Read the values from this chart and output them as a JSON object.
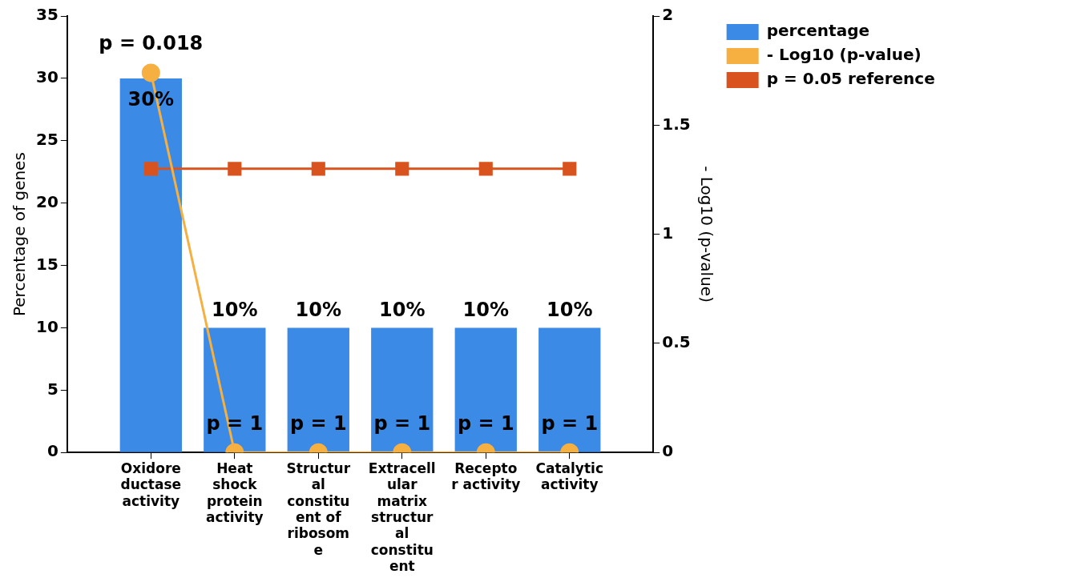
{
  "chart_data": {
    "type": "bar",
    "categories": [
      "Oxidore\nductase\nactivity",
      "Heat\nshock\nprotein\nactivity",
      "Structur\nal\nconstitu\nent of\nribosom\ne",
      "Extracell\nular\nmatrix\nstructur\nal\nconstitu\nent",
      "Recepto\nr activity",
      "Catalytic\nactivity"
    ],
    "ylabel": "Percentage of genes",
    "y2label": "- Log10 (p-value)",
    "ylim": [
      0,
      35
    ],
    "yticks": [
      0,
      5,
      10,
      15,
      20,
      25,
      30,
      35
    ],
    "y2lim": [
      0,
      2
    ],
    "y2ticks": [
      0,
      0.5,
      1,
      1.5,
      2
    ],
    "grid": false,
    "legend": "top right",
    "series": [
      {
        "name": "percentage",
        "color": "#3b8ae6",
        "values": [
          30,
          10,
          10,
          10,
          10,
          10
        ],
        "value_labels": [
          "30%",
          "10%",
          "10%",
          "10%",
          "10%",
          "10%"
        ]
      },
      {
        "name": "- Log10 (p-value)",
        "type": "line",
        "axis": "y2",
        "color": "#f5b041",
        "marker": "circle",
        "values": [
          1.74,
          0,
          0,
          0,
          0,
          0
        ]
      },
      {
        "name": "p = 0.05 reference",
        "type": "line",
        "axis": "y2",
        "color": "#d9531e",
        "marker": "square",
        "values": [
          1.3,
          1.3,
          1.3,
          1.3,
          1.3,
          1.3
        ]
      }
    ],
    "annotations": [
      {
        "text": "p = 0.018",
        "x": "Oxidore\nductase\nactivity",
        "y": 30.5
      },
      {
        "text": "p = 1",
        "x": "Heat\nshock\nprotein\nactivity",
        "y": 0
      },
      {
        "text": "p = 1",
        "x": "Structur\nal\nconstitu\nent of\nribosom\ne",
        "y": 0
      },
      {
        "text": "p = 1",
        "x": "Extracell\nular\nmatrix\nstructur\nal\nconstitu\nent",
        "y": 0
      },
      {
        "text": "p = 1",
        "x": "Recepto\nr activity",
        "y": 0
      },
      {
        "text": "p = 1",
        "x": "Catalytic\nactivity",
        "y": 0
      }
    ]
  }
}
